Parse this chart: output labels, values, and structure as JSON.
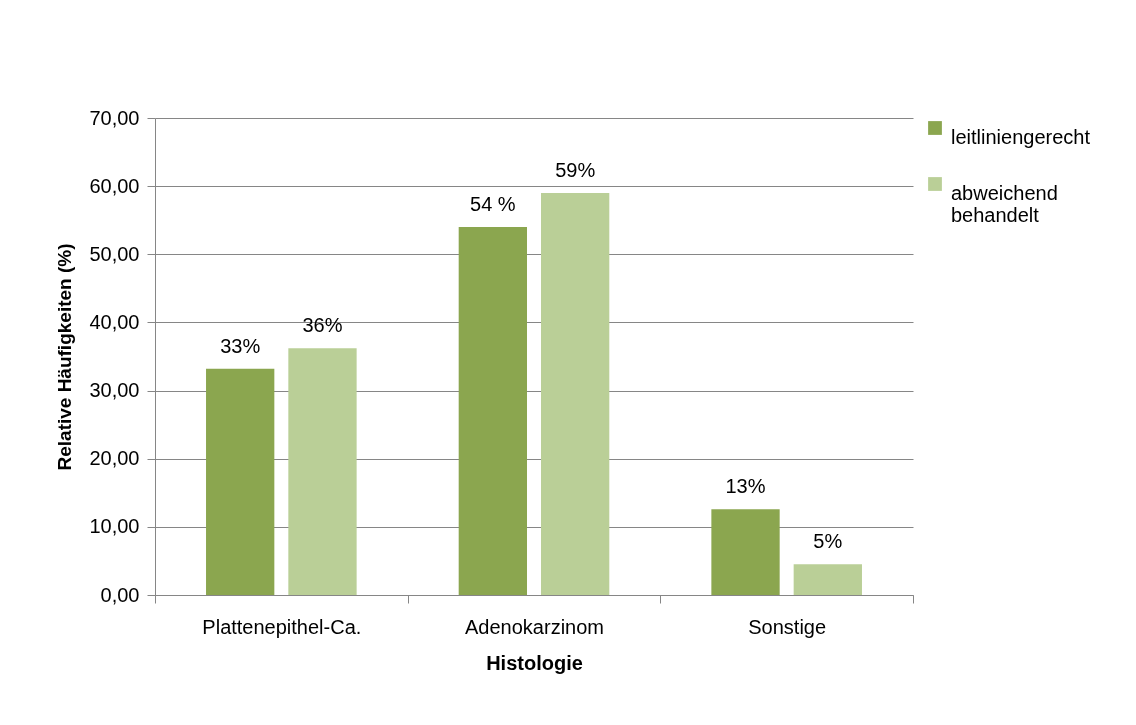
{
  "chart_data": {
    "type": "bar",
    "xlabel": "Histologie",
    "ylabel": "Relative Häufigkeiten (%)",
    "categories": [
      "Plattenepithel-Ca.",
      "Adenokarzinom",
      "Sonstige"
    ],
    "series": [
      {
        "name": "leitliniengerecht",
        "color": "#8ba64f",
        "values": [
          33.2,
          54.0,
          12.6
        ],
        "value_labels": [
          "33%",
          "54 %",
          "13%"
        ]
      },
      {
        "name": "abweichend behandelt",
        "color": "#bacf97",
        "values": [
          36.2,
          59.0,
          4.5
        ],
        "value_labels": [
          "36%",
          "59%",
          "5%"
        ]
      }
    ],
    "ylim": [
      0,
      70
    ],
    "yticks": [
      {
        "value": 0,
        "label": "0,00"
      },
      {
        "value": 10,
        "label": "10,00"
      },
      {
        "value": 20,
        "label": "20,00"
      },
      {
        "value": 30,
        "label": "30,00"
      },
      {
        "value": 40,
        "label": "40,00"
      },
      {
        "value": 50,
        "label": "50,00"
      },
      {
        "value": 60,
        "label": "60,00"
      },
      {
        "value": 70,
        "label": "70,00"
      }
    ],
    "grid": "y",
    "legend": "right"
  }
}
